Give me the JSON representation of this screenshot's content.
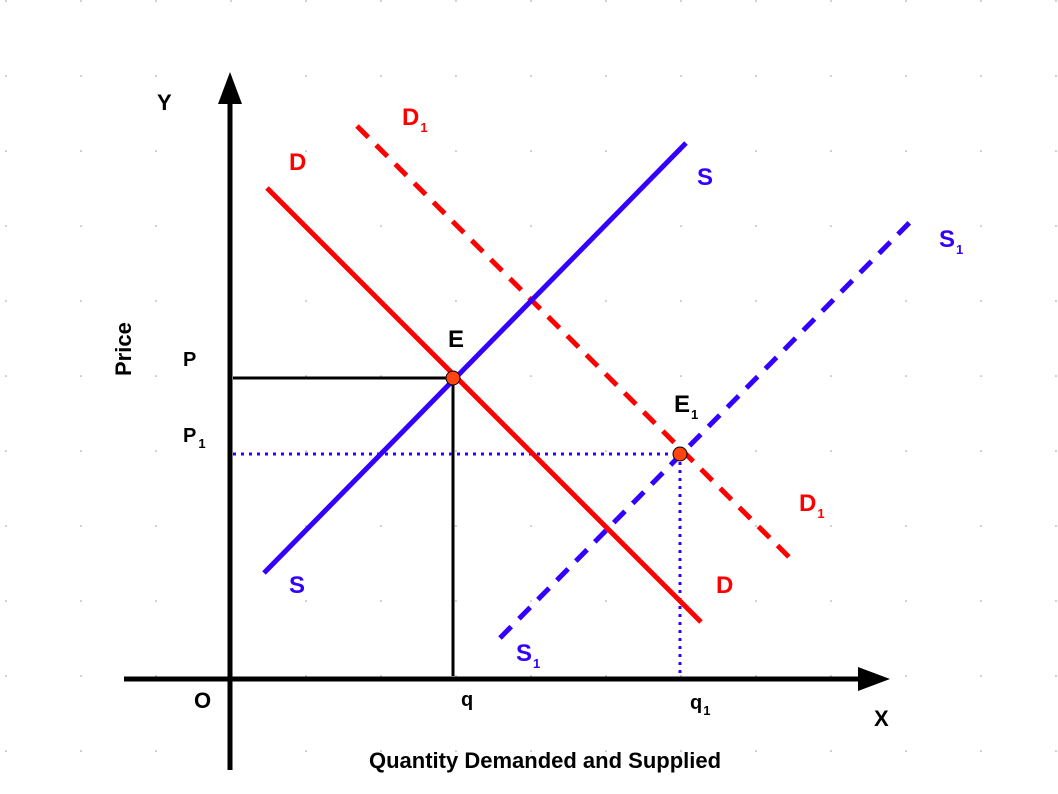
{
  "colors": {
    "demand": "#ff0000",
    "supply": "#3300ff",
    "axis": "#000000",
    "point": "#ff4411"
  },
  "axes": {
    "y_symbol": "Y",
    "x_symbol": "X",
    "origin": "O",
    "y_title": "Price",
    "x_title": "Quantity Demanded and Supplied"
  },
  "labels": {
    "D_top": "D",
    "D_bottom": "D",
    "S_top": "S",
    "S_bottom": "S",
    "D1_top": "D",
    "D1_top_sub": "1",
    "D1_bottom": "D",
    "D1_bottom_sub": "1",
    "S1_top": "S",
    "S1_top_sub": "1",
    "S1_bottom": "S",
    "S1_bottom_sub": "1",
    "E": "E",
    "E1": "E",
    "E1_sub": "1",
    "P": "P",
    "P1": "P",
    "P1_sub": "1",
    "q": "q",
    "q1": "q",
    "q1_sub": "1"
  },
  "curves": [
    {
      "id": "D",
      "role": "demand",
      "dashed": false
    },
    {
      "id": "S",
      "role": "supply",
      "dashed": false
    },
    {
      "id": "D1",
      "role": "demand",
      "dashed": true
    },
    {
      "id": "S1",
      "role": "supply",
      "dashed": true
    }
  ]
}
